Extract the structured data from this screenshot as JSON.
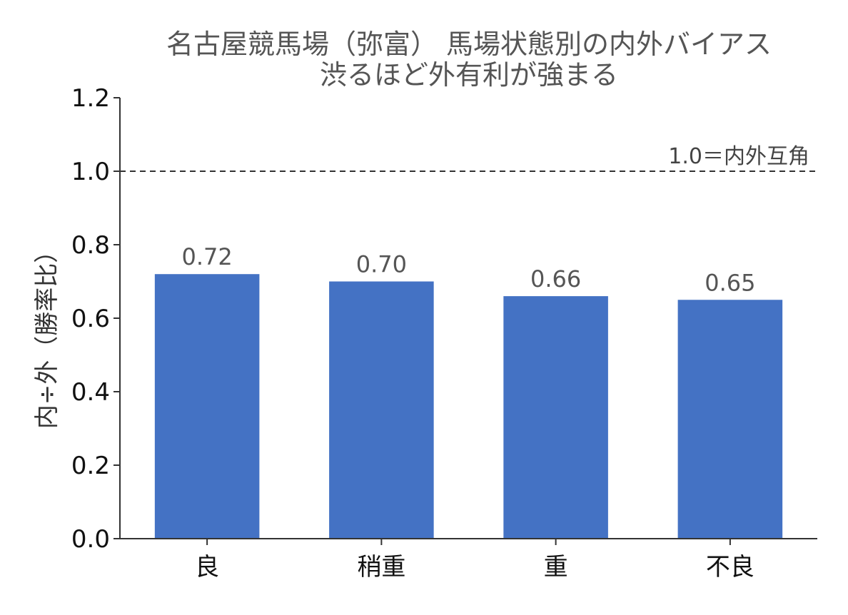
{
  "chart_data": {
    "type": "bar",
    "title": "名古屋競馬場（弥富） 馬場状態別の内外バイアス",
    "subtitle": "渋るほど外有利が強まる",
    "xlabel": "",
    "ylabel": "内÷外（勝率比）",
    "categories": [
      "良",
      "稍重",
      "重",
      "不良"
    ],
    "values": [
      0.72,
      0.7,
      0.66,
      0.65
    ],
    "data_labels": [
      "0.72",
      "0.70",
      "0.66",
      "0.65"
    ],
    "ylim": [
      0.0,
      1.2
    ],
    "yticks": [
      0.0,
      0.2,
      0.4,
      0.6,
      0.8,
      1.0,
      1.2
    ],
    "ytick_labels": [
      "0.0",
      "0.2",
      "0.4",
      "0.6",
      "0.8",
      "1.0",
      "1.2"
    ],
    "reference_line": {
      "value": 1.0,
      "label": "1.0＝内外互角",
      "style": "dashed"
    },
    "grid": false,
    "legend": "none",
    "bar_color": "#4472C4",
    "axis_color": "#333333",
    "reference_color": "#333333"
  }
}
